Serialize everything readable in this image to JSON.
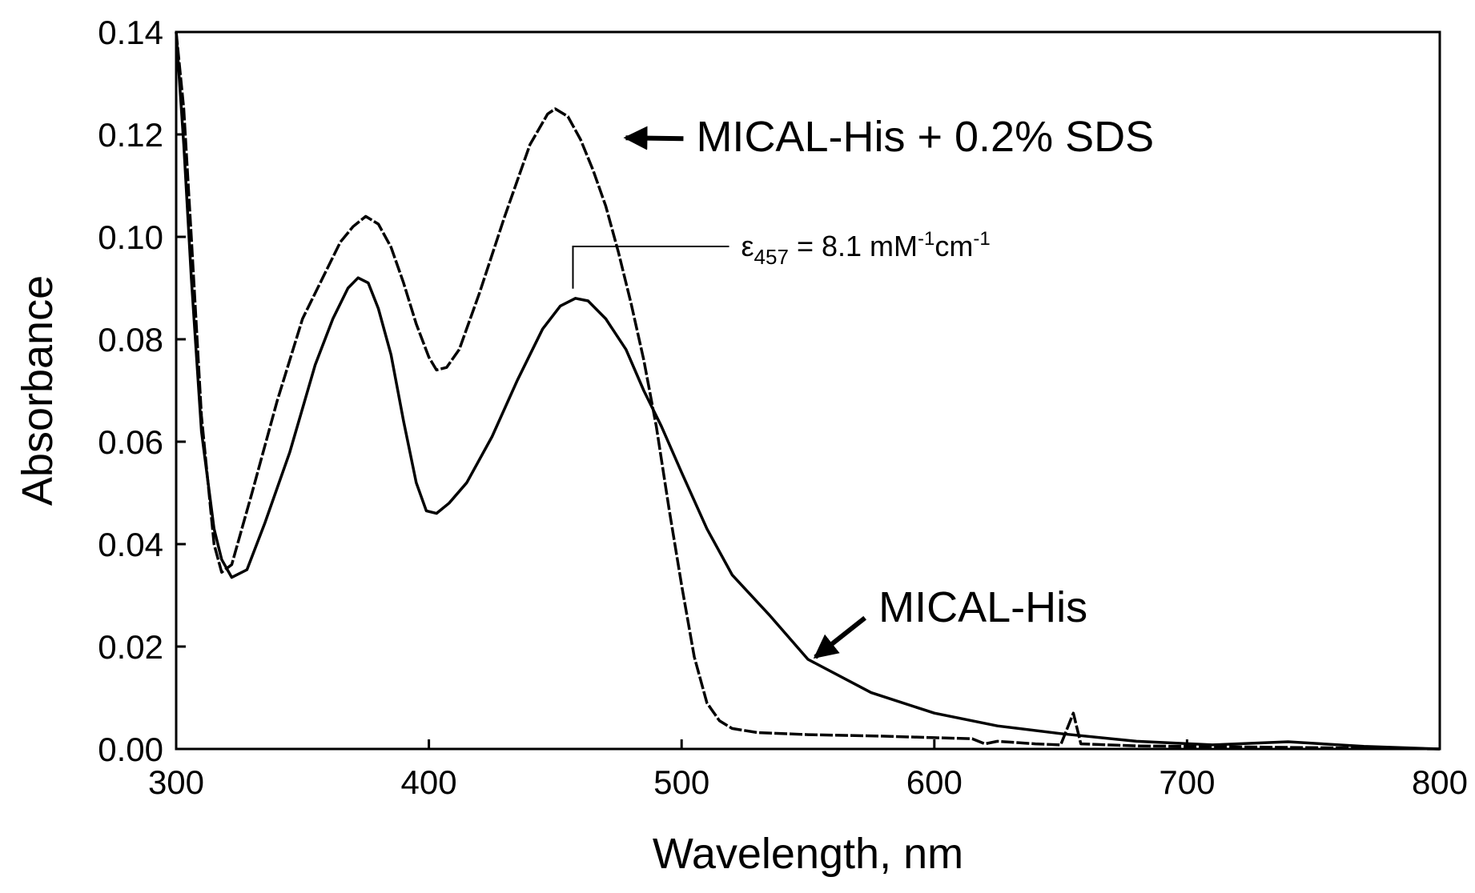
{
  "chart_data": {
    "type": "line",
    "title": "",
    "xlabel": "Wavelength, nm",
    "ylabel": "Absorbance",
    "xlim": [
      300,
      800
    ],
    "ylim": [
      0,
      0.14
    ],
    "xticks": [
      300,
      400,
      500,
      600,
      700,
      800
    ],
    "xtick_labels": [
      "300",
      "400",
      "500",
      "600",
      "700",
      "800"
    ],
    "yticks": [
      0,
      0.02,
      0.04,
      0.06,
      0.08,
      0.1,
      0.12,
      0.14
    ],
    "ytick_labels": [
      "0.00",
      "0.02",
      "0.04",
      "0.06",
      "0.08",
      "0.10",
      "0.12",
      "0.14"
    ],
    "grid": false,
    "series": [
      {
        "name": "MICAL-His + 0.2% SDS",
        "style": "dashed",
        "color": "#000000",
        "points": [
          [
            300,
            0.14
          ],
          [
            303,
            0.125
          ],
          [
            306,
            0.1
          ],
          [
            310,
            0.065
          ],
          [
            315,
            0.04
          ],
          [
            318,
            0.0345
          ],
          [
            322,
            0.036
          ],
          [
            330,
            0.05
          ],
          [
            340,
            0.068
          ],
          [
            350,
            0.084
          ],
          [
            358,
            0.092
          ],
          [
            365,
            0.099
          ],
          [
            370,
            0.102
          ],
          [
            375,
            0.104
          ],
          [
            380,
            0.1025
          ],
          [
            385,
            0.098
          ],
          [
            390,
            0.091
          ],
          [
            395,
            0.083
          ],
          [
            400,
            0.0765
          ],
          [
            403,
            0.074
          ],
          [
            407,
            0.0745
          ],
          [
            412,
            0.078
          ],
          [
            420,
            0.089
          ],
          [
            430,
            0.104
          ],
          [
            440,
            0.118
          ],
          [
            447,
            0.124
          ],
          [
            450,
            0.125
          ],
          [
            455,
            0.1235
          ],
          [
            460,
            0.119
          ],
          [
            465,
            0.113
          ],
          [
            470,
            0.106
          ],
          [
            475,
            0.097
          ],
          [
            480,
            0.087
          ],
          [
            485,
            0.076
          ],
          [
            490,
            0.063
          ],
          [
            495,
            0.047
          ],
          [
            500,
            0.032
          ],
          [
            505,
            0.018
          ],
          [
            510,
            0.009
          ],
          [
            515,
            0.0055
          ],
          [
            520,
            0.004
          ],
          [
            530,
            0.0032
          ],
          [
            550,
            0.0028
          ],
          [
            580,
            0.0025
          ],
          [
            600,
            0.0022
          ],
          [
            615,
            0.002
          ],
          [
            620,
            0.001
          ],
          [
            625,
            0.0015
          ],
          [
            640,
            0.001
          ],
          [
            650,
            0.0008
          ],
          [
            655,
            0.007
          ],
          [
            658,
            0.001
          ],
          [
            680,
            0.0006
          ],
          [
            720,
            0.0004
          ],
          [
            760,
            0.0002
          ],
          [
            800,
            0.0
          ]
        ]
      },
      {
        "name": "MICAL-His",
        "style": "solid",
        "color": "#000000",
        "points": [
          [
            300,
            0.14
          ],
          [
            303,
            0.118
          ],
          [
            306,
            0.092
          ],
          [
            310,
            0.062
          ],
          [
            315,
            0.043
          ],
          [
            318,
            0.037
          ],
          [
            322,
            0.0335
          ],
          [
            328,
            0.035
          ],
          [
            335,
            0.044
          ],
          [
            345,
            0.058
          ],
          [
            355,
            0.075
          ],
          [
            362,
            0.084
          ],
          [
            368,
            0.09
          ],
          [
            372,
            0.092
          ],
          [
            376,
            0.091
          ],
          [
            380,
            0.086
          ],
          [
            385,
            0.077
          ],
          [
            390,
            0.064
          ],
          [
            395,
            0.052
          ],
          [
            399,
            0.0465
          ],
          [
            403,
            0.046
          ],
          [
            408,
            0.048
          ],
          [
            415,
            0.052
          ],
          [
            425,
            0.061
          ],
          [
            435,
            0.072
          ],
          [
            445,
            0.082
          ],
          [
            452,
            0.0865
          ],
          [
            458,
            0.088
          ],
          [
            463,
            0.0875
          ],
          [
            470,
            0.084
          ],
          [
            478,
            0.078
          ],
          [
            485,
            0.07
          ],
          [
            492,
            0.063
          ],
          [
            500,
            0.054
          ],
          [
            510,
            0.043
          ],
          [
            520,
            0.034
          ],
          [
            535,
            0.026
          ],
          [
            550,
            0.0175
          ],
          [
            575,
            0.011
          ],
          [
            600,
            0.007
          ],
          [
            625,
            0.0045
          ],
          [
            650,
            0.003
          ],
          [
            680,
            0.0015
          ],
          [
            710,
            0.0008
          ],
          [
            740,
            0.0014
          ],
          [
            770,
            0.0005
          ],
          [
            800,
            0.0
          ]
        ]
      }
    ],
    "annotations": [
      {
        "text": "MICAL-His + 0.2% SDS",
        "arrow_to": [
          476,
          0.1195
        ]
      },
      {
        "text": "MICAL-His",
        "arrow_to": [
          551,
          0.017
        ]
      },
      {
        "text_prefix": "ε",
        "text_sub": "457",
        "text_mid": " = 8.1 mM",
        "text_sup1": "-1",
        "text_mid2": "cm",
        "text_sup2": "-1",
        "marker_x": 457,
        "marker_y": 0.088
      }
    ]
  }
}
